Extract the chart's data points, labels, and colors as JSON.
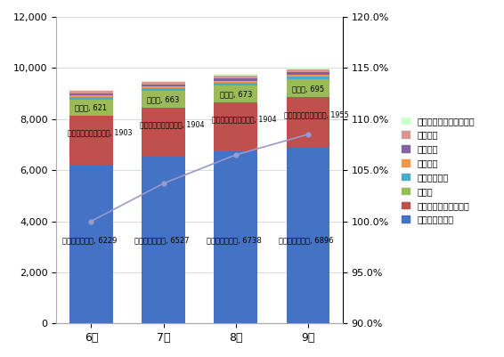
{
  "month_labels": [
    "6月",
    "7月",
    "8月",
    "9月"
  ],
  "series_order": [
    "タイムズプラス",
    "オリックスカーシェア",
    "カルコ",
    "アース・カー",
    "カノテコ",
    "エコロカ",
    "ロシェア",
    "カーシェアリング・ワン"
  ],
  "series_data": {
    "タイムズプラス": [
      6229,
      6527,
      6738,
      6896
    ],
    "オリックスカーシェア": [
      1903,
      1904,
      1904,
      1955
    ],
    "カルコ": [
      621,
      663,
      673,
      695
    ],
    "アース・カー": [
      110,
      115,
      118,
      120
    ],
    "カノテコ": [
      55,
      58,
      60,
      63
    ],
    "エコロカ": [
      80,
      85,
      95,
      100
    ],
    "ロシェア": [
      100,
      105,
      125,
      130
    ],
    "カーシェアリング・ワン": [
      35,
      38,
      42,
      45
    ]
  },
  "colors_map": {
    "タイムズプラス": "#4472C4",
    "オリックスカーシェア": "#C0504D",
    "カルコ": "#9BBB59",
    "アース・カー": "#4BACC6",
    "カノテコ": "#F79646",
    "エコロカ": "#8064A2",
    "ロシェア": "#D99694",
    "カーシェアリング・ワン": "#CCFFCC"
  },
  "line_values": [
    100.0,
    103.7,
    106.5,
    108.5
  ],
  "line_color": "#9999CC",
  "ylim_left": [
    0,
    12000
  ],
  "ylim_right": [
    90.0,
    120.0
  ],
  "yticks_left": [
    0,
    2000,
    4000,
    6000,
    8000,
    10000,
    12000
  ],
  "yticks_right": [
    90.0,
    95.0,
    100.0,
    105.0,
    110.0,
    115.0,
    120.0
  ],
  "bar_width": 0.6,
  "annot_times": [
    [
      "タイムズプラス, 6229",
      0,
      3000
    ],
    [
      "タイムズプラス, 6527",
      1,
      3000
    ],
    [
      "タイムズプラス, 6738",
      2,
      3000
    ],
    [
      "タイムズプラス, 6896",
      3,
      3000
    ]
  ],
  "annot_orix": [
    [
      "オリックスカーシェア, 1903",
      0
    ],
    [
      "オリックスカーシェア, 1904",
      1
    ],
    [
      "オリックスカーシェア, 1904",
      2
    ],
    [
      "オリックスカーシェア, 1955",
      3
    ]
  ],
  "annot_karuko": [
    [
      "カルコ, 621",
      0
    ],
    [
      "カルコ, 663",
      1
    ],
    [
      "カルコ, 673",
      2
    ],
    [
      "カルコ, 695",
      3
    ]
  ]
}
